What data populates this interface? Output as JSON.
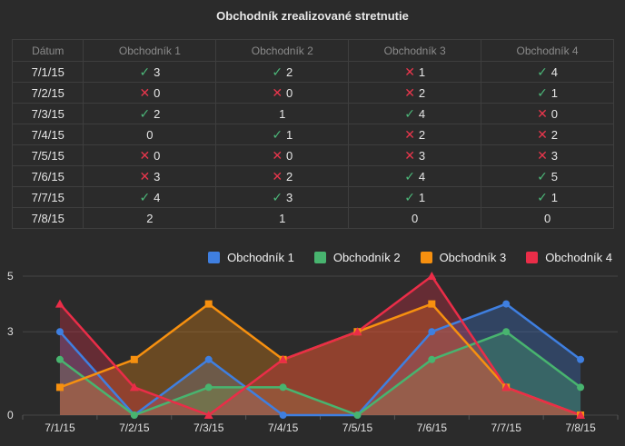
{
  "chart_data": {
    "type": "area",
    "title": "Obchodník zrealizované stretnutie",
    "table_headers": [
      "Dátum",
      "Obchodník 1",
      "Obchodník 2",
      "Obchodník 3",
      "Obchodník 4"
    ],
    "categories": [
      "7/1/15",
      "7/2/15",
      "7/3/15",
      "7/4/15",
      "7/5/15",
      "7/6/15",
      "7/7/15",
      "7/8/15"
    ],
    "series": [
      {
        "name": "Obchodník 1",
        "color": "#3f7fe0",
        "marker": "circle",
        "values": [
          3,
          0,
          2,
          0,
          0,
          3,
          4,
          2
        ]
      },
      {
        "name": "Obchodník 2",
        "color": "#48b46f",
        "marker": "circle",
        "values": [
          2,
          0,
          1,
          1,
          0,
          2,
          3,
          1
        ]
      },
      {
        "name": "Obchodník 3",
        "color": "#f7900f",
        "marker": "square",
        "values": [
          1,
          2,
          4,
          2,
          3,
          4,
          1,
          0
        ]
      },
      {
        "name": "Obchodník 4",
        "color": "#ea2d48",
        "marker": "triangle",
        "values": [
          4,
          1,
          0,
          2,
          3,
          5,
          1,
          0
        ]
      }
    ],
    "yticks": [
      "0",
      "3",
      "5"
    ],
    "ylim": [
      0,
      5
    ],
    "legend_position": "top-right",
    "grid": true
  },
  "marks": {
    "ok": "✓",
    "bad": "✕"
  },
  "colors": {
    "ok": "#4cb779",
    "bad": "#e8364c"
  }
}
